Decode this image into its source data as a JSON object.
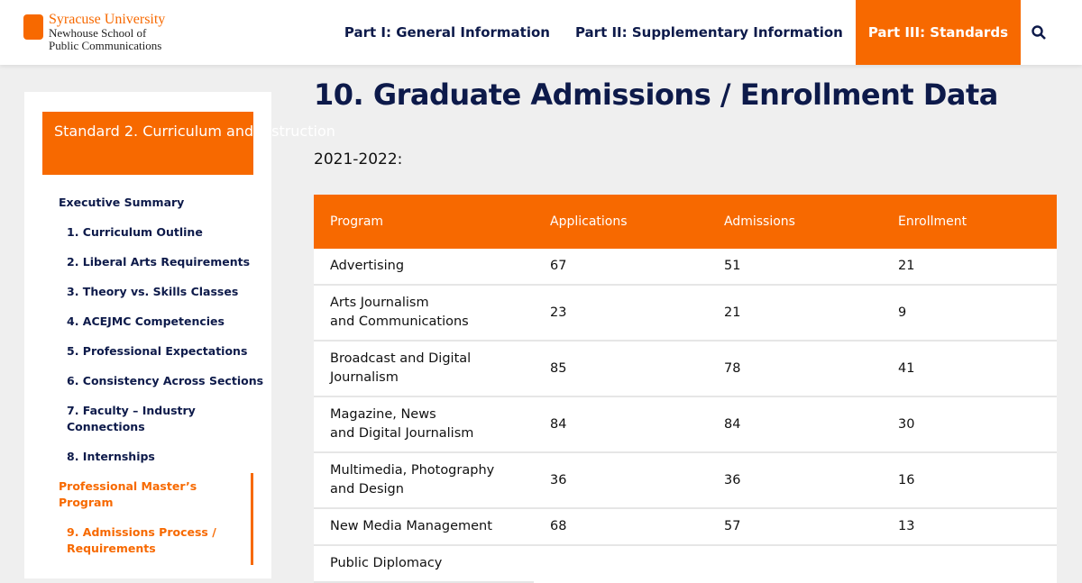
{
  "header": {
    "logo": {
      "lines": [
        "Syracuse University",
        "Newhouse School of",
        "Public Communications"
      ]
    },
    "nav": [
      "Part I: General Information",
      "Part II: Supplementary Information",
      "Part III: Standards"
    ],
    "active_nav": 2
  },
  "sidebar": {
    "heading": "Standard 2. Curriculum and Instruction",
    "items": [
      {
        "label": "Executive Summary",
        "level": 0
      },
      {
        "label": "1. Curriculum Outline",
        "level": 1
      },
      {
        "label": "2. Liberal Arts Requirements",
        "level": 1
      },
      {
        "label": "3. Theory vs. Skills Classes",
        "level": 1
      },
      {
        "label": "4. ACEJMC Competencies",
        "level": 1
      },
      {
        "label": "5. Professional Expectations",
        "level": 1
      },
      {
        "label": "6. Consistency Across Sections",
        "level": 1
      },
      {
        "label": "7. Faculty – Industry\nConnections",
        "level": 1
      },
      {
        "label": "8. Internships",
        "level": 1
      },
      {
        "label": "Professional Master’s Program",
        "level": 0,
        "active": true
      },
      {
        "label": "9. Admissions Process /\nRequirements",
        "level": 1,
        "active": true
      }
    ]
  },
  "main": {
    "title": "10. Graduate Admissions / Enrollment Data",
    "subtitle": "2021-2022:",
    "table": {
      "header": [
        "Program",
        "Applications",
        "Admissions",
        "Enrollment"
      ],
      "rows": [
        [
          "Advertising",
          67,
          51,
          21
        ],
        [
          "Arts Journalism\nand Communications",
          23,
          21,
          9
        ],
        [
          "Broadcast and Digital\nJournalism",
          85,
          78,
          41
        ],
        [
          "Magazine, News\nand Digital Journalism",
          84,
          84,
          30
        ],
        [
          "Multimedia, Photography\nand Design",
          36,
          36,
          16
        ],
        [
          "New Media Management",
          68,
          57,
          13
        ],
        [
          "Public Diplomacy"
        ]
      ]
    }
  }
}
